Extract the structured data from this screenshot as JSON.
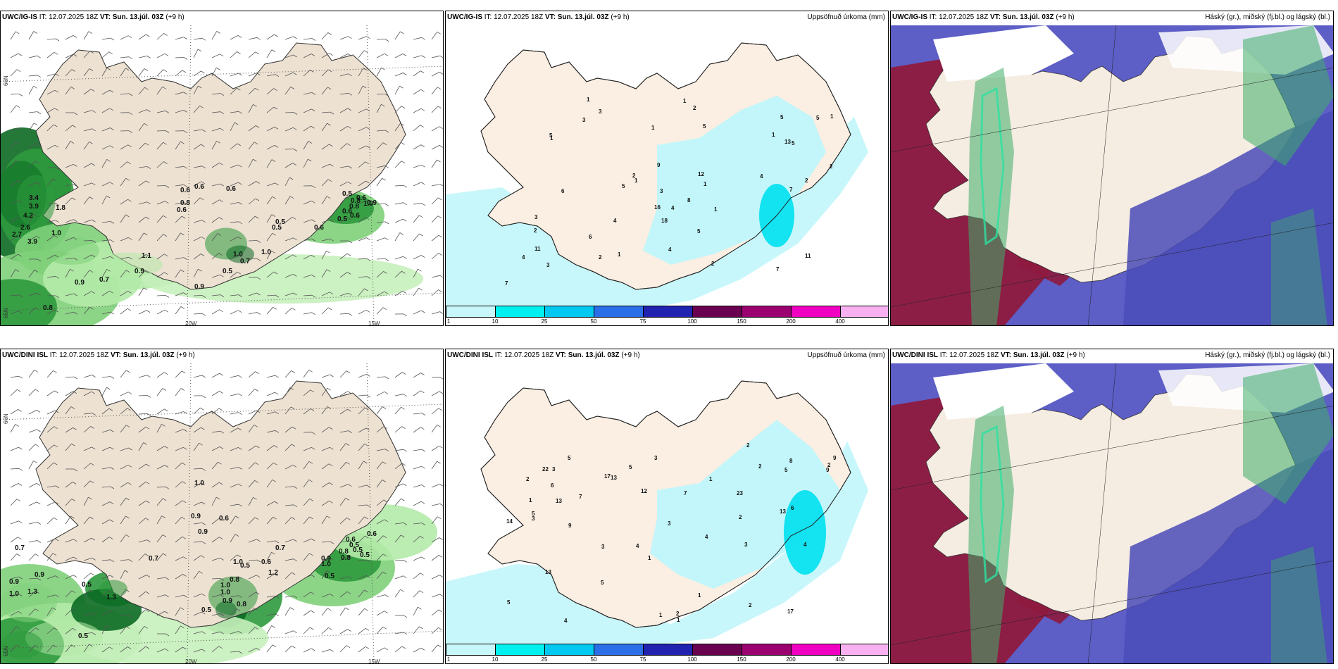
{
  "colorbar": {
    "colors": [
      "#c8f7fb",
      "#00f0f0",
      "#00c8f0",
      "#2a6ee8",
      "#2222b0",
      "#6a0050",
      "#9a0070",
      "#f000c0",
      "#f8b0f0"
    ],
    "ticks": [
      "1",
      "10",
      "25",
      "50",
      "75",
      "100",
      "150",
      "200",
      "400"
    ]
  },
  "rows": [
    {
      "model": "UWC/IG-IS",
      "it_label": "IT: 12.07.2025 18Z",
      "vt_label": "VT: Sun. 13.júl. 03Z",
      "lead": "(+9 h)",
      "wind_labels": [
        "0.6",
        "0.6",
        "0.6",
        "0.8",
        "3.4",
        "3.9",
        "4.2",
        "1.8",
        "2.6",
        "2.7",
        "3.9",
        "1.0",
        "0.6",
        "0.5",
        "0.5",
        "1.1",
        "0.9",
        "0.7",
        "0.9",
        "0.8",
        "1.0",
        "0.7",
        "0.5",
        "1.0",
        "0.9",
        "0.8",
        "0.8",
        "1.0",
        "0.6",
        "0.6",
        "0.9",
        "0.6",
        "0.5",
        "0.6",
        "0.5"
      ],
      "precip_numbers": [
        "3",
        "2",
        "1",
        "7",
        "2",
        "1",
        "1",
        "2",
        "4",
        "5",
        "1",
        "3",
        "5",
        "1",
        "1",
        "2",
        "3",
        "13",
        "1",
        "2",
        "3",
        "2",
        "4",
        "9",
        "16",
        "11",
        "6",
        "4",
        "5",
        "5",
        "8",
        "18",
        "4",
        "1",
        "5",
        "5",
        "4",
        "7",
        "3",
        "1",
        "11",
        "1",
        "2",
        "6",
        "7",
        "5",
        "12"
      ],
      "axis_labels": [
        "66N",
        "65N",
        "20W",
        "15W"
      ]
    },
    {
      "model": "UWC/DINI ISL",
      "it_label": "IT: 12.07.2025 18Z",
      "vt_label": "VT: Sun. 13.júl. 03Z",
      "lead": "(+9 h)",
      "wind_labels": [
        "1.0",
        "0.9",
        "0.6",
        "0.9",
        "0.7",
        "0.9",
        "0.9",
        "1.0",
        "1.3",
        "0.5",
        "1.3",
        "0.5",
        "1.0",
        "1.2",
        "0.8",
        "0.7",
        "0.6",
        "0.5",
        "1.0",
        "1.0",
        "0.9",
        "0.8",
        "0.5",
        "0.7",
        "0.6",
        "0.5",
        "0.8",
        "0.8",
        "0.9",
        "1.0",
        "0.5",
        "0.6",
        "0.5",
        "0.5"
      ],
      "precip_numbers": [
        "1",
        "1",
        "5",
        "2",
        "3",
        "7",
        "1",
        "4",
        "1",
        "3",
        "9",
        "9",
        "3",
        "5",
        "6",
        "6",
        "5",
        "13",
        "23",
        "17",
        "13",
        "17",
        "5",
        "9",
        "14",
        "22",
        "13",
        "13",
        "12",
        "4",
        "2",
        "1",
        "2",
        "3",
        "2",
        "8",
        "7",
        "4",
        "3",
        "2",
        "2",
        "4",
        "1",
        "2",
        "3",
        "5",
        "5"
      ],
      "axis_labels": [
        "66N",
        "65N",
        "20W",
        "15W"
      ]
    }
  ],
  "middle_title": "Uppsöfnuð úrkoma (mm)",
  "right_title": "Háský (gr.), miðský (fj.bl.) og lágský (bl.)"
}
